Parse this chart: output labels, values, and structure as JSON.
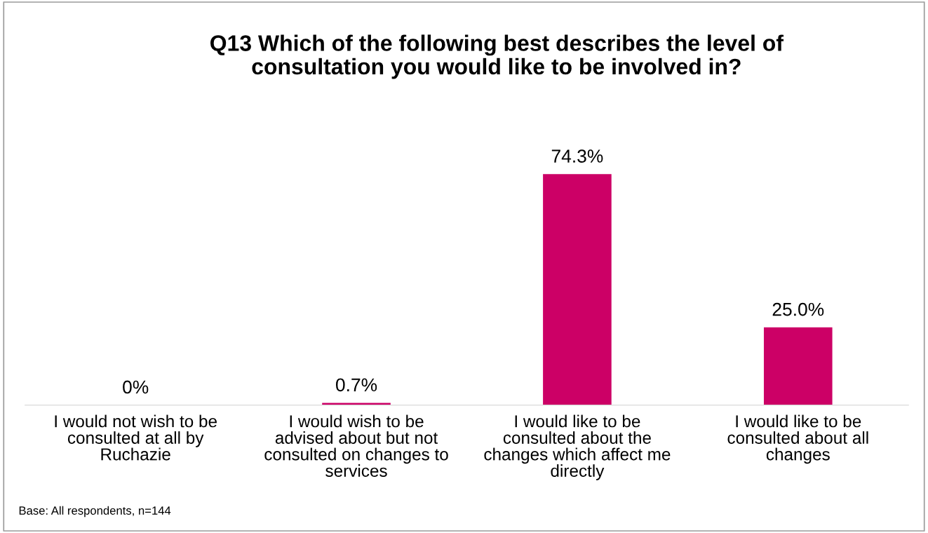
{
  "chart_data": {
    "type": "bar",
    "title": "Q13 Which of the following best describes the level of\nconsultation you would like to be involved in?",
    "categories": [
      "I would not wish to be\nconsulted at all by\nRuchazie",
      "I would wish to be\nadvised about but not\nconsulted on changes to\nservices",
      "I would like to be\nconsulted about the\nchanges which affect me\ndirectly",
      "I would like to be\nconsulted about all\nchanges"
    ],
    "values": [
      0,
      0.7,
      74.3,
      25.0
    ],
    "value_labels": [
      "0%",
      "0.7%",
      "74.3%",
      "25.0%"
    ],
    "color": "#cc0066",
    "annotations": [
      "Base: All respondents, n=144"
    ]
  }
}
